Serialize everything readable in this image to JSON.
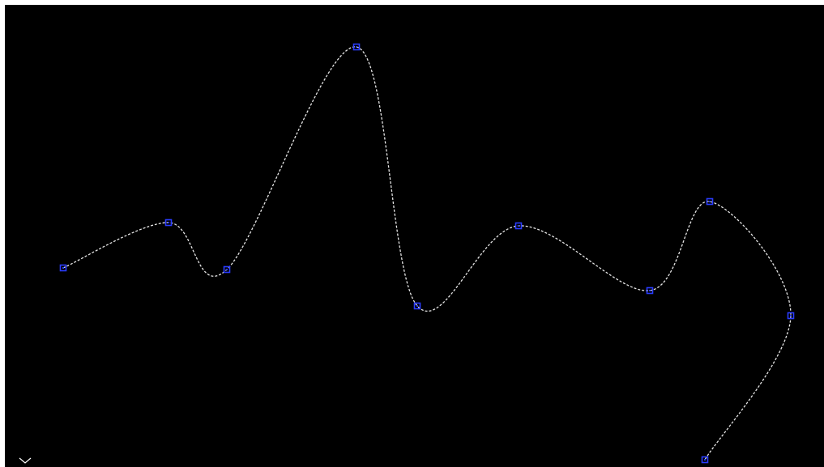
{
  "viewport": {
    "background": "#000000",
    "frame_background": "#ffffff"
  },
  "spline": {
    "stroke_color": "#e6e6e6",
    "style": "dashed",
    "control_point_color": "#2a3cff",
    "control_point_shape": "square-grip",
    "control_point_count": 10
  },
  "icons": {
    "ucs": "ucs-corner-icon"
  }
}
